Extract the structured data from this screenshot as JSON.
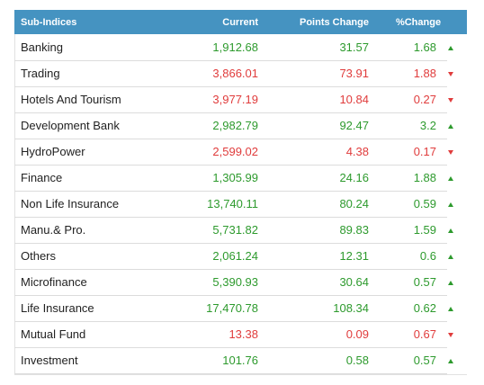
{
  "table": {
    "headers": {
      "name": "Sub-Indices",
      "current": "Current",
      "points_change": "Points Change",
      "pct_change": "%Change"
    },
    "rows": [
      {
        "name": "Banking",
        "current": "1,912.68",
        "points_change": "31.57",
        "pct_change": "1.68",
        "direction": "up"
      },
      {
        "name": "Trading",
        "current": "3,866.01",
        "points_change": "73.91",
        "pct_change": "1.88",
        "direction": "down"
      },
      {
        "name": "Hotels And Tourism",
        "current": "3,977.19",
        "points_change": "10.84",
        "pct_change": "0.27",
        "direction": "down"
      },
      {
        "name": "Development Bank",
        "current": "2,982.79",
        "points_change": "92.47",
        "pct_change": "3.2",
        "direction": "up"
      },
      {
        "name": "HydroPower",
        "current": "2,599.02",
        "points_change": "4.38",
        "pct_change": "0.17",
        "direction": "down"
      },
      {
        "name": "Finance",
        "current": "1,305.99",
        "points_change": "24.16",
        "pct_change": "1.88",
        "direction": "up"
      },
      {
        "name": "Non Life Insurance",
        "current": "13,740.11",
        "points_change": "80.24",
        "pct_change": "0.59",
        "direction": "up"
      },
      {
        "name": "Manu.& Pro.",
        "current": "5,731.82",
        "points_change": "89.83",
        "pct_change": "1.59",
        "direction": "up"
      },
      {
        "name": "Others",
        "current": "2,061.24",
        "points_change": "12.31",
        "pct_change": "0.6",
        "direction": "up"
      },
      {
        "name": "Microfinance",
        "current": "5,390.93",
        "points_change": "30.64",
        "pct_change": "0.57",
        "direction": "up"
      },
      {
        "name": "Life Insurance",
        "current": "17,470.78",
        "points_change": "108.34",
        "pct_change": "0.62",
        "direction": "up"
      },
      {
        "name": "Mutual Fund",
        "current": "13.38",
        "points_change": "0.09",
        "pct_change": "0.67",
        "direction": "down"
      },
      {
        "name": "Investment",
        "current": "101.76",
        "points_change": "0.58",
        "pct_change": "0.57",
        "direction": "up"
      }
    ]
  },
  "colors": {
    "header_bg": "#4593c1",
    "up": "#2d9a2d",
    "down": "#e03c3c"
  }
}
